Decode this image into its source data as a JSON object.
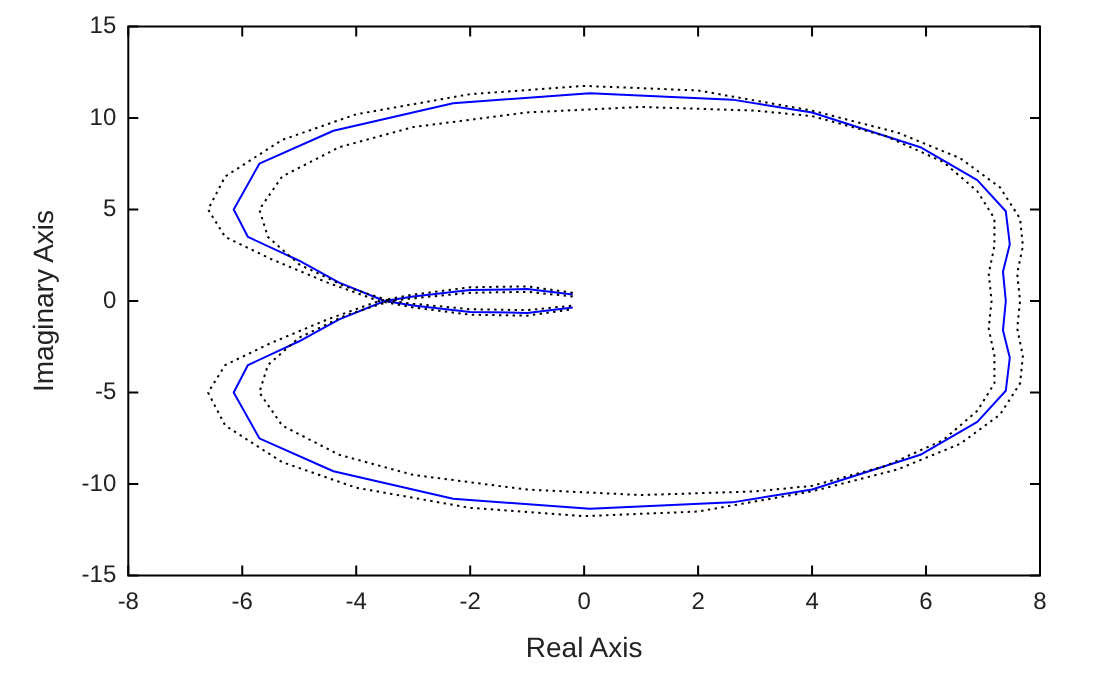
{
  "chart_data": {
    "type": "line",
    "xlabel": "Real Axis",
    "ylabel": "Imaginary Axis",
    "xlim": [
      -8,
      8
    ],
    "ylim": [
      -15,
      15
    ],
    "xticks": [
      -8,
      -6,
      -4,
      -2,
      0,
      2,
      4,
      6,
      8
    ],
    "yticks": [
      -15,
      -10,
      -5,
      0,
      5,
      10,
      15
    ],
    "grid": false,
    "legend": false,
    "marker": "none",
    "series": [
      {
        "color": "#000000",
        "line_style": "dotted",
        "x": [
          -0.2,
          -1,
          -2,
          -3,
          -3.6,
          -4.5,
          -5.5,
          -6.3,
          -6.6,
          -6.3,
          -5.3,
          -4,
          -2,
          0,
          2,
          4,
          5.5,
          6.6,
          7.3,
          7.65,
          7.7,
          7.6,
          7.65,
          7.6,
          7.7,
          7.65,
          7.3,
          6.6,
          5.5,
          4,
          2,
          0,
          -2,
          -4,
          -5.3,
          -6.3,
          -6.6,
          -6.3,
          -5.5,
          -4.5,
          -3.6,
          -3,
          -2,
          -1,
          -0.2
        ],
        "values": [
          0.45,
          0.8,
          0.75,
          0.35,
          0,
          -1,
          -2.3,
          -3.5,
          -5,
          -6.8,
          -8.8,
          -10.2,
          -11.3,
          -11.75,
          -11.5,
          -10.4,
          -9.2,
          -7.8,
          -6.2,
          -4.5,
          -3,
          -1.5,
          0,
          1.5,
          3,
          4.5,
          6.2,
          7.8,
          9.2,
          10.4,
          11.5,
          11.75,
          11.3,
          10.2,
          8.8,
          6.8,
          5,
          3.5,
          2.3,
          1,
          0,
          -0.35,
          -0.75,
          -0.8,
          -0.45
        ]
      },
      {
        "color": "#000000",
        "line_style": "dotted",
        "x": [
          -0.2,
          -1,
          -2,
          -3,
          -3.4,
          -4.2,
          -5,
          -5.55,
          -5.7,
          -5.3,
          -4.3,
          -3,
          -1,
          1,
          3,
          4,
          5.3,
          6.3,
          6.9,
          7.2,
          7.2,
          7.1,
          7.15,
          7.1,
          7.2,
          7.2,
          6.9,
          6.3,
          5.3,
          4,
          3,
          1,
          -1,
          -3,
          -4.3,
          -5.3,
          -5.7,
          -5.55,
          -5,
          -4.2,
          -3.4,
          -3,
          -2,
          -1,
          -0.2
        ],
        "values": [
          0.25,
          0.5,
          0.45,
          0.15,
          0,
          -0.8,
          -2,
          -3.5,
          -5,
          -6.8,
          -8.4,
          -9.5,
          -10.3,
          -10.6,
          -10.4,
          -10.1,
          -9,
          -7.6,
          -6,
          -4.5,
          -3,
          -1.5,
          0,
          1.5,
          3,
          4.5,
          6,
          7.6,
          9,
          10.1,
          10.4,
          10.6,
          10.3,
          9.5,
          8.4,
          6.8,
          5,
          3.5,
          2,
          0.8,
          0,
          -0.15,
          -0.45,
          -0.5,
          -0.25
        ]
      },
      {
        "color": "#0000ff",
        "line_style": "solid",
        "x": [
          -0.2,
          -1,
          -2,
          -3,
          -3.5,
          -4.3,
          -5,
          -5.9,
          -6.15,
          -5.7,
          -4.4,
          -2.3,
          0.1,
          2.6,
          4,
          5.9,
          6.9,
          7.4,
          7.47,
          7.35,
          7.4,
          7.35,
          7.47,
          7.4,
          6.9,
          5.9,
          4,
          2.6,
          0.1,
          -2.3,
          -4.4,
          -5.7,
          -6.15,
          -5.9,
          -5,
          -4.3,
          -3.5,
          -3,
          -2,
          -1,
          -0.2
        ],
        "values": [
          0.35,
          0.65,
          0.6,
          0.25,
          0,
          -1,
          -2.2,
          -3.5,
          -5,
          -7.5,
          -9.3,
          -10.8,
          -11.35,
          -11,
          -10.3,
          -8.4,
          -6.6,
          -4.9,
          -3.1,
          -1.6,
          0,
          1.6,
          3.1,
          4.9,
          6.6,
          8.4,
          10.3,
          11,
          11.35,
          10.8,
          9.3,
          7.5,
          5,
          3.5,
          2.2,
          1,
          0,
          -0.25,
          -0.6,
          -0.65,
          -0.35
        ]
      }
    ]
  }
}
